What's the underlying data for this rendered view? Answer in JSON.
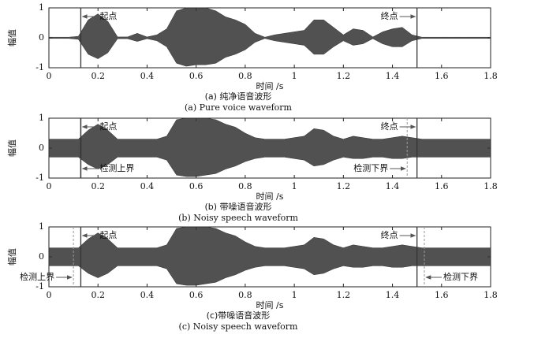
{
  "chart_data": [
    {
      "type": "waveform",
      "xlabel": "时间 /s",
      "ylabel": "幅值",
      "caption_zh": "(a) 纯净语音波形",
      "caption_en": "(a) Pure voice waveform",
      "xlim": [
        0,
        1.8
      ],
      "ylim": [
        -1,
        1
      ],
      "xticks": [
        0,
        0.2,
        0.4,
        0.6,
        0.8,
        1,
        1.2,
        1.4,
        1.6,
        1.8
      ],
      "yticks": [
        -1,
        0,
        1
      ],
      "color": "#333333",
      "x": [
        0,
        0.04,
        0.08,
        0.12,
        0.16,
        0.2,
        0.24,
        0.28,
        0.32,
        0.36,
        0.4,
        0.44,
        0.48,
        0.52,
        0.56,
        0.6,
        0.64,
        0.68,
        0.72,
        0.76,
        0.8,
        0.84,
        0.88,
        0.92,
        0.96,
        1,
        1.04,
        1.08,
        1.12,
        1.16,
        1.2,
        1.24,
        1.28,
        1.32,
        1.36,
        1.4,
        1.44,
        1.48,
        1.52,
        1.56,
        1.6,
        1.64,
        1.68,
        1.72,
        1.76,
        1.8
      ],
      "upper": [
        0.02,
        0.02,
        0.02,
        0.05,
        0.6,
        0.8,
        0.55,
        0.03,
        0.03,
        0.15,
        0.03,
        0.1,
        0.3,
        0.9,
        1,
        1,
        1,
        0.9,
        0.7,
        0.6,
        0.45,
        0.15,
        0.02,
        0.1,
        0.15,
        0.2,
        0.25,
        0.6,
        0.6,
        0.35,
        0.1,
        0.3,
        0.25,
        0.03,
        0.2,
        0.3,
        0.35,
        0.1,
        0.02,
        0.02,
        0.02,
        0.02,
        0.02,
        0.02,
        0.02,
        0.02
      ],
      "lower": [
        -0.02,
        -0.02,
        -0.02,
        -0.05,
        -0.55,
        -0.7,
        -0.5,
        -0.03,
        -0.03,
        -0.12,
        -0.03,
        -0.1,
        -0.3,
        -0.85,
        -0.95,
        -0.9,
        -0.9,
        -0.85,
        -0.65,
        -0.55,
        -0.4,
        -0.15,
        -0.02,
        -0.1,
        -0.15,
        -0.2,
        -0.25,
        -0.55,
        -0.55,
        -0.3,
        -0.1,
        -0.25,
        -0.2,
        -0.03,
        -0.2,
        -0.3,
        -0.3,
        -0.1,
        -0.02,
        -0.02,
        -0.02,
        -0.02,
        -0.02,
        -0.02,
        -0.02,
        -0.02
      ],
      "markers": [
        {
          "label": "起点",
          "x": 0.13
        },
        {
          "label": "终点",
          "x": 1.5
        }
      ]
    },
    {
      "type": "waveform",
      "xlabel": "时间 /s",
      "ylabel": "幅值",
      "caption_zh": "(b) 带噪语音波形",
      "caption_en": "(b) Noisy speech waveform",
      "xlim": [
        0,
        1.8
      ],
      "ylim": [
        -1,
        1
      ],
      "xticks": [
        0,
        0.2,
        0.4,
        0.6,
        0.8,
        1,
        1.2,
        1.4,
        1.6,
        1.8
      ],
      "yticks": [
        -1,
        0,
        1
      ],
      "color": "#333333",
      "x": [
        0,
        0.04,
        0.08,
        0.12,
        0.16,
        0.2,
        0.24,
        0.28,
        0.32,
        0.36,
        0.4,
        0.44,
        0.48,
        0.52,
        0.56,
        0.6,
        0.64,
        0.68,
        0.72,
        0.76,
        0.8,
        0.84,
        0.88,
        0.92,
        0.96,
        1,
        1.04,
        1.08,
        1.12,
        1.16,
        1.2,
        1.24,
        1.28,
        1.32,
        1.36,
        1.4,
        1.44,
        1.48,
        1.52,
        1.56,
        1.6,
        1.64,
        1.68,
        1.72,
        1.76,
        1.8
      ],
      "upper": [
        0.3,
        0.3,
        0.3,
        0.3,
        0.6,
        0.8,
        0.6,
        0.3,
        0.3,
        0.3,
        0.3,
        0.3,
        0.4,
        0.95,
        1,
        1,
        1,
        0.95,
        0.8,
        0.7,
        0.5,
        0.35,
        0.3,
        0.3,
        0.3,
        0.35,
        0.4,
        0.65,
        0.6,
        0.4,
        0.3,
        0.4,
        0.35,
        0.3,
        0.3,
        0.35,
        0.4,
        0.35,
        0.3,
        0.3,
        0.3,
        0.3,
        0.3,
        0.3,
        0.3,
        0.3
      ],
      "lower": [
        -0.3,
        -0.3,
        -0.3,
        -0.3,
        -0.55,
        -0.7,
        -0.55,
        -0.3,
        -0.3,
        -0.3,
        -0.3,
        -0.3,
        -0.4,
        -0.9,
        -0.95,
        -0.95,
        -0.9,
        -0.85,
        -0.7,
        -0.6,
        -0.45,
        -0.35,
        -0.3,
        -0.3,
        -0.3,
        -0.35,
        -0.4,
        -0.6,
        -0.55,
        -0.4,
        -0.3,
        -0.35,
        -0.35,
        -0.3,
        -0.3,
        -0.35,
        -0.35,
        -0.3,
        -0.3,
        -0.3,
        -0.3,
        -0.3,
        -0.3,
        -0.3,
        -0.3,
        -0.3
      ],
      "markers": [
        {
          "label": "起点",
          "x": 0.13
        },
        {
          "label": "终点",
          "x": 1.5
        },
        {
          "label": "检测上界",
          "x": 0.13
        },
        {
          "label": "检测下界",
          "x": 1.46
        }
      ]
    },
    {
      "type": "waveform",
      "xlabel": "时间 /s",
      "ylabel": "幅值",
      "caption_zh": "(c)带噪语音波形",
      "caption_en": "(c) Noisy speech waveform",
      "xlim": [
        0,
        1.8
      ],
      "ylim": [
        -1,
        1
      ],
      "xticks": [
        0,
        0.2,
        0.4,
        0.6,
        0.8,
        1,
        1.2,
        1.4,
        1.6,
        1.8
      ],
      "yticks": [
        -1,
        0,
        1
      ],
      "color": "#333333",
      "x": [
        0,
        0.04,
        0.08,
        0.12,
        0.16,
        0.2,
        0.24,
        0.28,
        0.32,
        0.36,
        0.4,
        0.44,
        0.48,
        0.52,
        0.56,
        0.6,
        0.64,
        0.68,
        0.72,
        0.76,
        0.8,
        0.84,
        0.88,
        0.92,
        0.96,
        1,
        1.04,
        1.08,
        1.12,
        1.16,
        1.2,
        1.24,
        1.28,
        1.32,
        1.36,
        1.4,
        1.44,
        1.48,
        1.52,
        1.56,
        1.6,
        1.64,
        1.68,
        1.72,
        1.76,
        1.8
      ],
      "upper": [
        0.3,
        0.3,
        0.3,
        0.3,
        0.6,
        0.8,
        0.6,
        0.3,
        0.3,
        0.3,
        0.3,
        0.3,
        0.4,
        0.95,
        1,
        1,
        1,
        0.95,
        0.8,
        0.7,
        0.5,
        0.35,
        0.3,
        0.3,
        0.3,
        0.35,
        0.4,
        0.65,
        0.6,
        0.4,
        0.3,
        0.4,
        0.35,
        0.3,
        0.3,
        0.35,
        0.4,
        0.35,
        0.3,
        0.3,
        0.3,
        0.3,
        0.3,
        0.3,
        0.3,
        0.3
      ],
      "lower": [
        -0.3,
        -0.3,
        -0.3,
        -0.3,
        -0.55,
        -0.7,
        -0.55,
        -0.3,
        -0.3,
        -0.3,
        -0.3,
        -0.3,
        -0.4,
        -0.9,
        -0.95,
        -0.95,
        -0.9,
        -0.85,
        -0.7,
        -0.6,
        -0.45,
        -0.35,
        -0.3,
        -0.3,
        -0.3,
        -0.35,
        -0.4,
        -0.6,
        -0.55,
        -0.4,
        -0.3,
        -0.35,
        -0.35,
        -0.3,
        -0.3,
        -0.35,
        -0.35,
        -0.3,
        -0.3,
        -0.3,
        -0.3,
        -0.3,
        -0.3,
        -0.3,
        -0.3,
        -0.3
      ],
      "markers": [
        {
          "label": "检测上界",
          "x": 0.1
        },
        {
          "label": "起点",
          "x": 0.13
        },
        {
          "label": "终点",
          "x": 1.5
        },
        {
          "label": "检测下界",
          "x": 1.53
        }
      ]
    }
  ]
}
